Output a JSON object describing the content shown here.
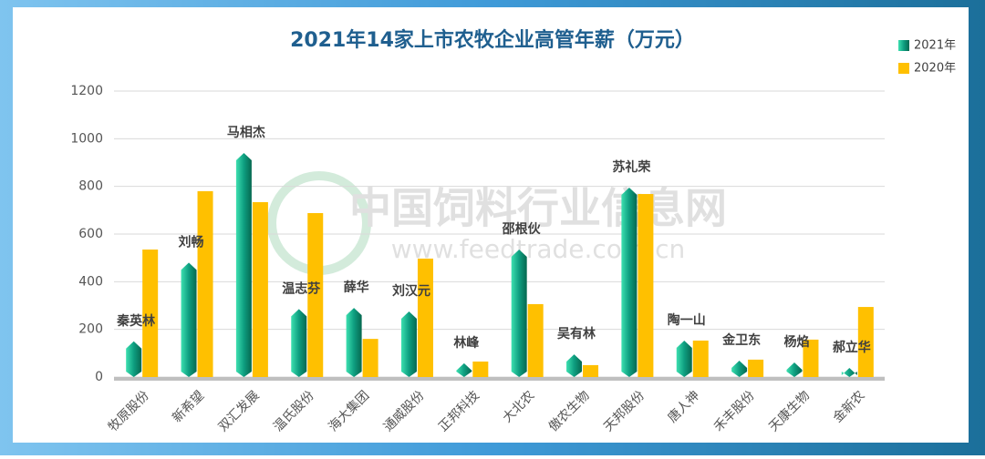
{
  "chart_data": {
    "type": "bar",
    "title": "2021年14家上市农牧企业高管年薪（万元）",
    "watermark": "中国饲料行业信息网",
    "watermark_url": "www.feedtrade.com.cn",
    "categories": [
      "牧原股份",
      "新希望",
      "双汇发展",
      "温氏股份",
      "海大集团",
      "通威股份",
      "正邦科技",
      "大北农",
      "傲农生物",
      "天邦股份",
      "唐人神",
      "禾丰股份",
      "天康生物",
      "金新农"
    ],
    "executives": [
      "秦英林",
      "刘畅",
      "马相杰",
      "温志芬",
      "薛华",
      "刘汉元",
      "林峰",
      "邵根伙",
      "吴有林",
      "苏礼荣",
      "陶一山",
      "金卫东",
      "杨焰",
      "郝立华"
    ],
    "series": [
      {
        "name": "2021年",
        "color": "#0e9e80",
        "values": [
          150,
          480,
          940,
          285,
          290,
          275,
          58,
          535,
          95,
          795,
          153,
          69,
          61,
          38
        ]
      },
      {
        "name": "2020年",
        "color": "#ffc000",
        "values": [
          535,
          780,
          734,
          688,
          160,
          497,
          65,
          306,
          50,
          768,
          153,
          73,
          157,
          294
        ]
      }
    ],
    "ylim": [
      0,
      1200
    ],
    "yticks": [
      0,
      200,
      400,
      600,
      800,
      1000,
      1200
    ],
    "grid": true,
    "legend": "top-right"
  }
}
